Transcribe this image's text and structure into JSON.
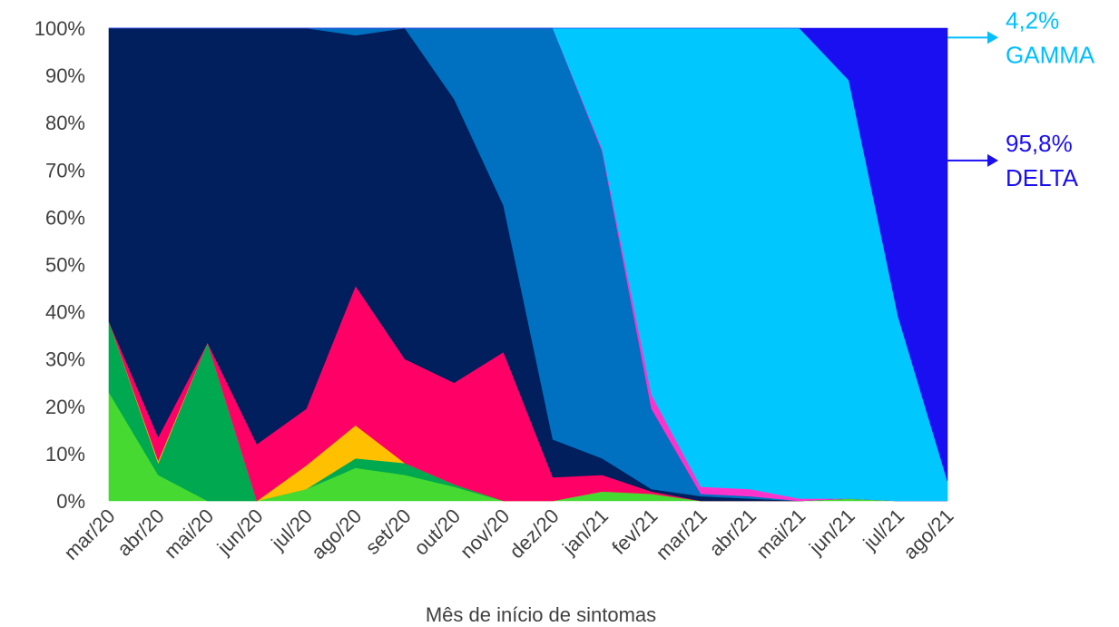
{
  "chart_data": {
    "type": "area",
    "stacked": "percent",
    "xlabel": "Mês de início de sintomas",
    "ylabel": "",
    "ylim": [
      0,
      100
    ],
    "yticks": [
      "0%",
      "10%",
      "20%",
      "30%",
      "40%",
      "50%",
      "60%",
      "70%",
      "80%",
      "90%",
      "100%"
    ],
    "categories": [
      "mar/20",
      "abr/20",
      "mai/20",
      "jun/20",
      "jul/20",
      "ago/20",
      "set/20",
      "out/20",
      "nov/20",
      "dez/20",
      "jan/21",
      "fev/21",
      "mar/21",
      "abr/21",
      "mai/21",
      "jun/21",
      "jul/21",
      "ago/21"
    ],
    "series": [
      {
        "color": "#45d931",
        "values": [
          23,
          5.5,
          0,
          0,
          2.5,
          7,
          5.5,
          3,
          0,
          0,
          2,
          1.5,
          0,
          0,
          0,
          0.5,
          0,
          0
        ]
      },
      {
        "color": "#00a84f",
        "values": [
          15,
          2.5,
          33.5,
          0,
          0,
          2,
          2.5,
          0.5,
          0,
          0,
          0,
          0,
          0,
          0,
          0,
          0,
          0,
          0
        ]
      },
      {
        "color": "#ffc000",
        "values": [
          0,
          0.5,
          0,
          0,
          5,
          7,
          0,
          0,
          0,
          0,
          0,
          0,
          0,
          0,
          0,
          0,
          0,
          0
        ]
      },
      {
        "color": "#ff0066",
        "values": [
          0,
          5,
          0,
          12,
          12,
          29.5,
          22,
          21.5,
          31.5,
          5,
          3.5,
          0.5,
          0,
          0,
          0,
          0,
          0,
          0
        ]
      },
      {
        "color": "#001f5c",
        "values": [
          62,
          86.5,
          66.5,
          88,
          80.5,
          53,
          70,
          60,
          31,
          8,
          3.5,
          0.5,
          1,
          0.5,
          0,
          0,
          0,
          0
        ]
      },
      {
        "color": "#0070c0",
        "values": [
          0,
          0,
          0,
          0,
          0,
          1.5,
          0,
          15,
          37.5,
          87,
          65,
          17,
          0.5,
          0.5,
          0,
          0,
          0,
          0
        ]
      },
      {
        "color": "#ff33cc",
        "values": [
          0,
          0,
          0,
          0,
          0,
          0,
          0,
          0,
          0,
          0,
          0.5,
          3,
          1.5,
          1.5,
          0.5,
          0,
          0,
          0
        ]
      },
      {
        "color": "#00c8ff",
        "values": [
          0,
          0,
          0,
          0,
          0,
          0,
          0,
          0,
          0,
          0,
          25.5,
          77.5,
          97,
          97.5,
          99.5,
          88.5,
          39,
          4.2
        ]
      },
      {
        "color": "#1a0ff0",
        "values": [
          0,
          0,
          0,
          0,
          0,
          0,
          0,
          0,
          0,
          0,
          0,
          0,
          0,
          0,
          0,
          11,
          61,
          95.8
        ]
      }
    ],
    "annotations": [
      {
        "value": "4,2%",
        "label": "GAMMA",
        "color": "#00bfff",
        "y": 98
      },
      {
        "value": "95,8%",
        "label": "DELTA",
        "color": "#1a0ff0",
        "y": 72
      }
    ]
  }
}
